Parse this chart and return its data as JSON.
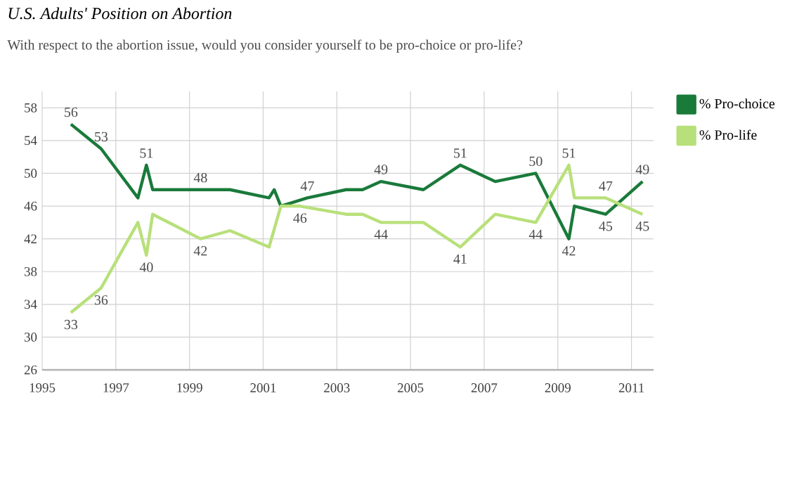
{
  "chart_data": {
    "type": "line",
    "title": "U.S. Adults' Position on Abortion",
    "subtitle": "With respect to the abortion issue, would you consider yourself to be pro-choice or pro-life?",
    "xlim": [
      1995,
      2011.6
    ],
    "xticks": [
      1995,
      1997,
      1999,
      2001,
      2003,
      2005,
      2007,
      2009,
      2011
    ],
    "ylim": [
      26,
      60
    ],
    "yticks": [
      26,
      30,
      34,
      38,
      42,
      46,
      50,
      54,
      58
    ],
    "grid": true,
    "legend": "right",
    "marker": "none",
    "line_style": "solid",
    "series": [
      {
        "name": "% Pro-choice",
        "color": "#1a7a3a",
        "x": [
          1995.78,
          1996.6,
          1997.6,
          1997.83,
          1998.0,
          1999.3,
          2000.1,
          2001.16,
          2001.3,
          2001.48,
          2002.2,
          2003.25,
          2003.7,
          2004.2,
          2005.35,
          2006.35,
          2007.3,
          2008.4,
          2009.3,
          2009.45,
          2010.3,
          2011.3
        ],
        "values": [
          56,
          53,
          47,
          51,
          48,
          48,
          48,
          47,
          48,
          46,
          47,
          48,
          48,
          49,
          48,
          51,
          49,
          50,
          42,
          46,
          45,
          49
        ],
        "value_labels": [
          "56",
          "53",
          null,
          "51",
          null,
          "48",
          null,
          null,
          null,
          null,
          "47",
          null,
          null,
          "49",
          null,
          "51",
          null,
          "50",
          "42",
          null,
          "45",
          "49"
        ]
      },
      {
        "name": "% Pro-life",
        "color": "#b8e07a",
        "x": [
          1995.78,
          1996.6,
          1997.6,
          1997.83,
          1998.0,
          1999.3,
          2000.1,
          2001.16,
          2001.48,
          2002.0,
          2003.25,
          2003.7,
          2004.2,
          2005.35,
          2006.35,
          2007.3,
          2008.4,
          2009.3,
          2009.45,
          2010.3,
          2011.3
        ],
        "values": [
          33,
          36,
          44,
          40,
          45,
          42,
          43,
          41,
          46,
          46,
          45,
          45,
          44,
          44,
          41,
          45,
          44,
          51,
          47,
          47,
          45
        ],
        "value_labels": [
          "33",
          "36",
          null,
          "40",
          null,
          "42",
          null,
          null,
          null,
          "46",
          null,
          null,
          "44",
          null,
          "41",
          null,
          "44",
          "51",
          null,
          "47",
          "45"
        ]
      }
    ]
  }
}
